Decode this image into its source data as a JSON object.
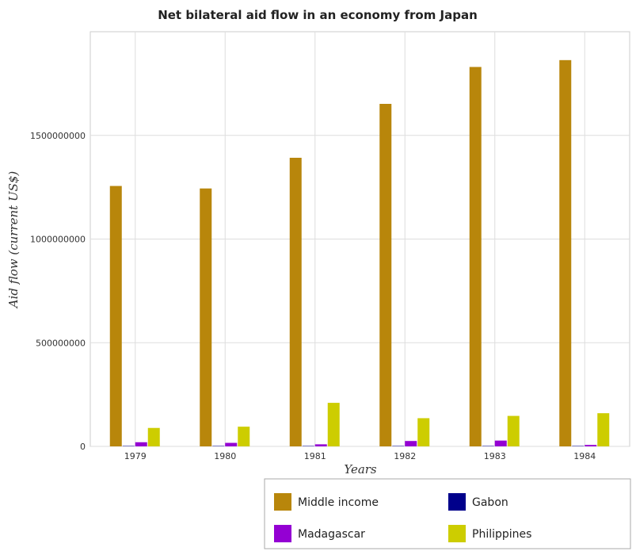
{
  "chart_data": {
    "type": "bar",
    "title": "Net bilateral aid flow in an economy from Japan",
    "xlabel": "Years",
    "ylabel": "Aid flow (current US$)",
    "categories": [
      "1979",
      "1980",
      "1981",
      "1982",
      "1983",
      "1984"
    ],
    "ylim": [
      0,
      2000000000
    ],
    "yticks": [
      0,
      500000000,
      1000000000,
      1500000000
    ],
    "ytick_labels": [
      "0",
      "500000000",
      "1000000000",
      "1500000000"
    ],
    "grid": true,
    "legend_position": "bottom-right",
    "series": [
      {
        "name": "Middle income",
        "color": "#b8860b",
        "values": [
          1256000000,
          1244000000,
          1392000000,
          1652000000,
          1830000000,
          1863000000
        ]
      },
      {
        "name": "Gabon",
        "color": "#00008b",
        "values": [
          500000,
          400000,
          300000,
          400000,
          300000,
          300000
        ]
      },
      {
        "name": "Madagascar",
        "color": "#9400d3",
        "values": [
          20000000,
          17000000,
          10000000,
          26000000,
          28000000,
          7000000
        ]
      },
      {
        "name": "Philippines",
        "color": "#cdcd00",
        "values": [
          89000000,
          95000000,
          210000000,
          136000000,
          147000000,
          160000000
        ]
      }
    ]
  }
}
